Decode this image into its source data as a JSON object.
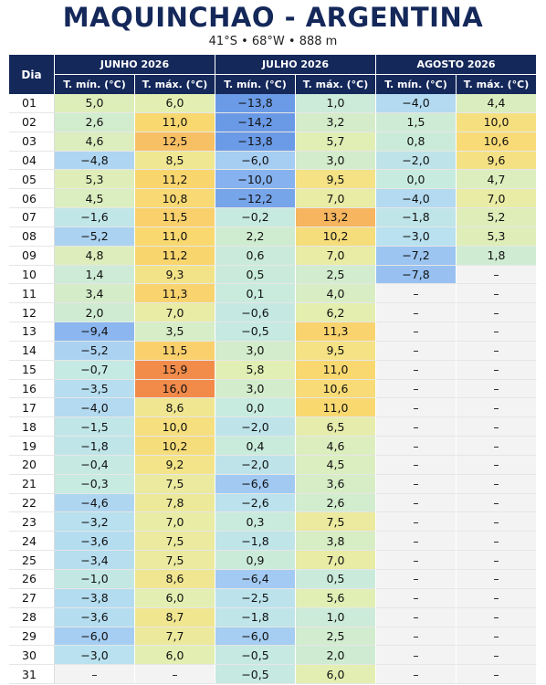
{
  "header": {
    "title": "MAQUINCHAO - ARGENTINA",
    "subtitle": "41°S • 68°W • 888 m"
  },
  "table": {
    "corner": "Dia",
    "months": [
      "JUNHO 2026",
      "JULHO 2026",
      "AGOSTO 2026"
    ],
    "columns": [
      "T. mín. (°C)",
      "T. máx. (°C)",
      "T. mín. (°C)",
      "T. máx. (°C)",
      "T. mín. (°C)",
      "T. máx. (°C)"
    ],
    "rows": [
      [
        "01",
        "5,0",
        "6,0",
        "−13,8",
        "1,0",
        "−4,0",
        "4,4"
      ],
      [
        "02",
        "2,6",
        "11,0",
        "−14,2",
        "3,2",
        "1,5",
        "10,0"
      ],
      [
        "03",
        "4,6",
        "12,5",
        "−13,8",
        "5,7",
        "0,8",
        "10,6"
      ],
      [
        "04",
        "−4,8",
        "8,5",
        "−6,0",
        "3,0",
        "−2,0",
        "9,6"
      ],
      [
        "05",
        "5,3",
        "11,2",
        "−10,0",
        "9,5",
        "0,0",
        "4,7"
      ],
      [
        "06",
        "4,5",
        "10,8",
        "−12,2",
        "7,0",
        "−4,0",
        "7,0"
      ],
      [
        "07",
        "−1,6",
        "11,5",
        "−0,2",
        "13,2",
        "−1,8",
        "5,2"
      ],
      [
        "08",
        "−5,2",
        "11,0",
        "2,2",
        "10,2",
        "−3,0",
        "5,3"
      ],
      [
        "09",
        "4,8",
        "11,2",
        "0,6",
        "7,0",
        "−7,2",
        "1,8"
      ],
      [
        "10",
        "1,4",
        "9,3",
        "0,5",
        "2,5",
        "−7,8",
        "–"
      ],
      [
        "11",
        "3,4",
        "11,3",
        "0,1",
        "4,0",
        "–",
        "–"
      ],
      [
        "12",
        "2,0",
        "7,0",
        "−0,6",
        "6,2",
        "–",
        "–"
      ],
      [
        "13",
        "−9,4",
        "3,5",
        "−0,5",
        "11,3",
        "–",
        "–"
      ],
      [
        "14",
        "−5,2",
        "11,5",
        "3,0",
        "9,5",
        "–",
        "–"
      ],
      [
        "15",
        "−0,7",
        "15,9",
        "5,8",
        "11,0",
        "–",
        "–"
      ],
      [
        "16",
        "−3,5",
        "16,0",
        "3,0",
        "10,6",
        "–",
        "–"
      ],
      [
        "17",
        "−4,0",
        "8,6",
        "0,0",
        "11,0",
        "–",
        "–"
      ],
      [
        "18",
        "−1,5",
        "10,0",
        "−2,0",
        "6,5",
        "–",
        "–"
      ],
      [
        "19",
        "−1,8",
        "10,2",
        "0,4",
        "4,6",
        "–",
        "–"
      ],
      [
        "20",
        "−0,4",
        "9,2",
        "−2,0",
        "4,5",
        "–",
        "–"
      ],
      [
        "21",
        "−0,3",
        "7,5",
        "−6,6",
        "3,6",
        "–",
        "–"
      ],
      [
        "22",
        "−4,6",
        "7,8",
        "−2,6",
        "2,6",
        "–",
        "–"
      ],
      [
        "23",
        "−3,2",
        "7,0",
        "0,3",
        "7,5",
        "–",
        "–"
      ],
      [
        "24",
        "−3,6",
        "7,5",
        "−1,8",
        "3,8",
        "–",
        "–"
      ],
      [
        "25",
        "−3,4",
        "7,5",
        "0,9",
        "7,0",
        "–",
        "–"
      ],
      [
        "26",
        "−1,0",
        "8,6",
        "−6,4",
        "0,5",
        "–",
        "–"
      ],
      [
        "27",
        "−3,8",
        "6,0",
        "−2,5",
        "5,6",
        "–",
        "–"
      ],
      [
        "28",
        "−3,6",
        "8,7",
        "−1,8",
        "1,0",
        "–",
        "–"
      ],
      [
        "29",
        "−6,0",
        "7,7",
        "−6,0",
        "2,5",
        "–",
        "–"
      ],
      [
        "30",
        "−3,0",
        "6,0",
        "−0,5",
        "2,0",
        "–",
        "–"
      ],
      [
        "31",
        "–",
        "–",
        "−0,5",
        "6,0",
        "–",
        "–"
      ]
    ]
  }
}
